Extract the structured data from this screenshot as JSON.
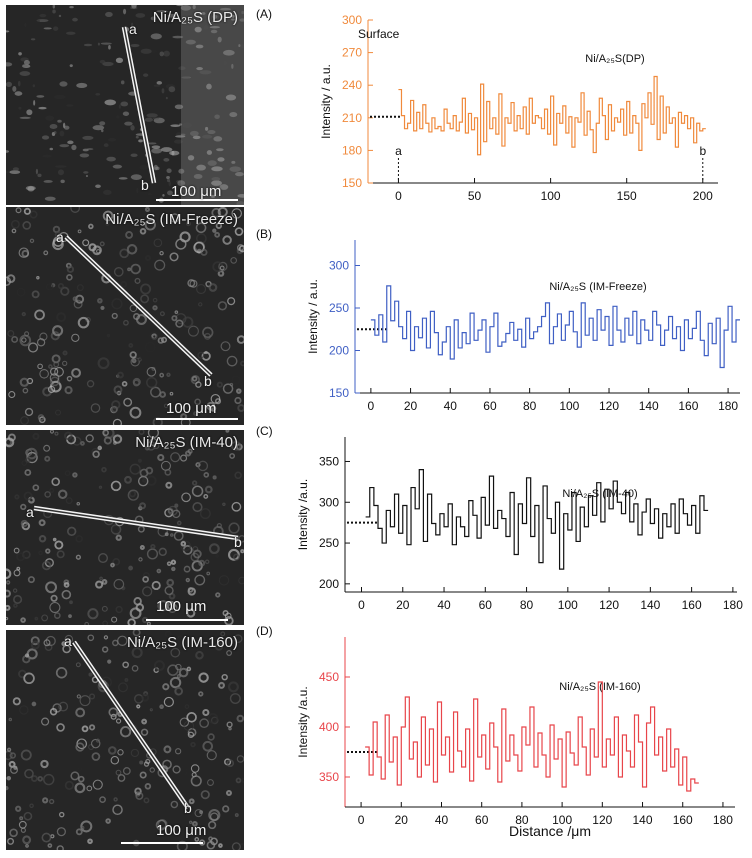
{
  "images": [
    {
      "title": "Ni/A₂₅S (DP)",
      "scale": "100 μm",
      "a": "a",
      "b": "b"
    },
    {
      "title": "Ni/A₂₅S (IM-Freeze)",
      "scale": "100 μm",
      "a": "a",
      "b": "b"
    },
    {
      "title": "Ni/A₂₅S (IM-40)",
      "scale": "100 μm",
      "a": "a",
      "b": "b"
    },
    {
      "title": "Ni/A₂₅S (IM-160)",
      "scale": "100 μm",
      "a": "a",
      "b": "b"
    }
  ],
  "colors": {
    "A": "#f08a3c",
    "B": "#3f5fc4",
    "C": "#111111",
    "D": "#e8454a"
  },
  "chart_data": [
    {
      "type": "line",
      "panel": "(A)",
      "annotation": "Surface",
      "series_label": "Ni/A₂₅S(DP)",
      "ylabel": "Intensity / a.u.",
      "xlim": [
        -20,
        210
      ],
      "ylim": [
        150,
        300
      ],
      "xticks": [
        0,
        50,
        100,
        150,
        200
      ],
      "yticks": [
        150,
        180,
        210,
        240,
        270,
        300
      ],
      "marker_a": "a",
      "marker_b": "b",
      "reference_y": 211,
      "x": [
        0,
        2,
        4,
        6,
        8,
        10,
        12,
        14,
        16,
        18,
        20,
        22,
        24,
        26,
        28,
        30,
        32,
        34,
        36,
        38,
        40,
        42,
        44,
        46,
        48,
        50,
        52,
        54,
        56,
        58,
        60,
        62,
        64,
        66,
        68,
        70,
        72,
        74,
        76,
        78,
        80,
        82,
        84,
        86,
        88,
        90,
        92,
        94,
        96,
        98,
        100,
        102,
        104,
        106,
        108,
        110,
        112,
        114,
        116,
        118,
        120,
        122,
        124,
        126,
        128,
        130,
        132,
        134,
        136,
        138,
        140,
        142,
        144,
        146,
        148,
        150,
        152,
        154,
        156,
        158,
        160,
        162,
        164,
        166,
        168,
        170,
        172,
        174,
        176,
        178,
        180,
        182,
        184,
        186,
        188,
        190,
        192,
        194,
        196,
        198,
        200
      ],
      "values": [
        236,
        212,
        200,
        205,
        226,
        198,
        215,
        200,
        222,
        205,
        197,
        210,
        200,
        202,
        198,
        218,
        205,
        200,
        212,
        198,
        206,
        228,
        196,
        214,
        199,
        210,
        176,
        241,
        188,
        225,
        200,
        210,
        195,
        232,
        184,
        210,
        205,
        224,
        198,
        212,
        200,
        220,
        195,
        228,
        205,
        212,
        210,
        200,
        218,
        195,
        230,
        185,
        214,
        205,
        221,
        196,
        211,
        183,
        210,
        206,
        233,
        194,
        216,
        199,
        178,
        205,
        228,
        212,
        190,
        222,
        198,
        210,
        206,
        218,
        194,
        225,
        196,
        212,
        205,
        180,
        223,
        210,
        233,
        204,
        248,
        190,
        230,
        196,
        220,
        205,
        210,
        183,
        215,
        205,
        212,
        200,
        210,
        187,
        205,
        198,
        200
      ]
    },
    {
      "type": "line",
      "panel": "(B)",
      "series_label": "Ni/A₂₅S (IM-Freeze)",
      "ylabel": "Intensity / a.u.",
      "xlim": [
        -8,
        186
      ],
      "ylim": [
        150,
        330
      ],
      "xticks": [
        0,
        20,
        40,
        60,
        80,
        100,
        120,
        140,
        160,
        180
      ],
      "yticks": [
        150,
        200,
        250,
        300
      ],
      "reference_y": 225,
      "x": [
        0,
        2,
        4,
        6,
        8,
        10,
        12,
        14,
        16,
        18,
        20,
        22,
        24,
        26,
        28,
        30,
        32,
        34,
        36,
        38,
        40,
        42,
        44,
        46,
        48,
        50,
        52,
        54,
        56,
        58,
        60,
        62,
        64,
        66,
        68,
        70,
        72,
        74,
        76,
        78,
        80,
        82,
        84,
        86,
        88,
        90,
        92,
        94,
        96,
        98,
        100,
        102,
        104,
        106,
        108,
        110,
        112,
        114,
        116,
        118,
        120,
        122,
        124,
        126,
        128,
        130,
        132,
        134,
        136,
        138,
        140,
        142,
        144,
        146,
        148,
        150,
        152,
        154,
        156,
        158,
        160,
        162,
        164,
        166,
        168,
        170,
        172,
        174,
        176,
        178,
        180,
        182,
        184
      ],
      "values": [
        236,
        218,
        242,
        210,
        276,
        235,
        258,
        228,
        214,
        246,
        200,
        228,
        215,
        238,
        203,
        246,
        221,
        195,
        210,
        228,
        190,
        236,
        203,
        221,
        208,
        244,
        212,
        224,
        236,
        198,
        228,
        244,
        205,
        210,
        220,
        233,
        212,
        225,
        204,
        238,
        214,
        222,
        228,
        240,
        256,
        208,
        228,
        243,
        212,
        230,
        246,
        222,
        204,
        256,
        218,
        238,
        212,
        248,
        224,
        240,
        206,
        252,
        224,
        210,
        238,
        218,
        246,
        208,
        236,
        224,
        212,
        246,
        230,
        206,
        224,
        240,
        214,
        228,
        200,
        236,
        214,
        226,
        246,
        212,
        194,
        232,
        208,
        238,
        180,
        224,
        252,
        210,
        236
      ]
    },
    {
      "type": "line",
      "panel": "(C)",
      "series_label": "Ni/A₂₅S (IM-40)",
      "ylabel": "Intensity /a.u.",
      "xlim": [
        -8,
        182
      ],
      "ylim": [
        190,
        380
      ],
      "xticks": [
        0,
        20,
        40,
        60,
        80,
        100,
        120,
        140,
        160,
        180
      ],
      "yticks": [
        200,
        250,
        300,
        350
      ],
      "reference_y": 275,
      "x": [
        2,
        4,
        6,
        8,
        10,
        12,
        14,
        16,
        18,
        20,
        22,
        24,
        26,
        28,
        30,
        32,
        34,
        36,
        38,
        40,
        42,
        44,
        46,
        48,
        50,
        52,
        54,
        56,
        58,
        60,
        62,
        64,
        66,
        68,
        70,
        72,
        74,
        76,
        78,
        80,
        82,
        84,
        86,
        88,
        90,
        92,
        94,
        96,
        98,
        100,
        102,
        104,
        106,
        108,
        110,
        112,
        114,
        116,
        118,
        120,
        122,
        124,
        126,
        128,
        130,
        132,
        134,
        136,
        138,
        140,
        142,
        144,
        146,
        148,
        150,
        152,
        154,
        156,
        158,
        160,
        162,
        164,
        166
      ],
      "values": [
        282,
        318,
        296,
        268,
        250,
        290,
        270,
        310,
        262,
        296,
        248,
        318,
        292,
        340,
        252,
        310,
        274,
        260,
        286,
        270,
        298,
        248,
        282,
        270,
        258,
        302,
        284,
        256,
        306,
        272,
        332,
        268,
        290,
        280,
        258,
        312,
        236,
        298,
        274,
        330,
        258,
        296,
        226,
        320,
        280,
        262,
        300,
        218,
        286,
        266,
        312,
        252,
        294,
        270,
        308,
        284,
        324,
        276,
        316,
        292,
        326,
        300,
        286,
        312,
        276,
        298,
        260,
        288,
        304,
        274,
        292,
        256,
        286,
        270,
        298,
        262,
        304,
        286,
        272,
        296,
        262,
        308,
        290
      ]
    },
    {
      "type": "line",
      "panel": "(D)",
      "series_label": "Ni/A₂₅S (IM-160)",
      "ylabel": "Intensity /a.u.",
      "xlim": [
        -8,
        186
      ],
      "ylim": [
        320,
        490
      ],
      "xticks": [
        0,
        20,
        40,
        60,
        80,
        100,
        120,
        140,
        160,
        180
      ],
      "yticks": [
        350,
        400,
        450
      ],
      "reference_y": 375,
      "x": [
        2,
        4,
        6,
        8,
        10,
        12,
        14,
        16,
        18,
        20,
        22,
        24,
        26,
        28,
        30,
        32,
        34,
        36,
        38,
        40,
        42,
        44,
        46,
        48,
        50,
        52,
        54,
        56,
        58,
        60,
        62,
        64,
        66,
        68,
        70,
        72,
        74,
        76,
        78,
        80,
        82,
        84,
        86,
        88,
        90,
        92,
        94,
        96,
        98,
        100,
        102,
        104,
        106,
        108,
        110,
        112,
        114,
        116,
        118,
        120,
        122,
        124,
        126,
        128,
        130,
        132,
        134,
        136,
        138,
        140,
        142,
        144,
        146,
        148,
        150,
        152,
        154,
        156,
        158,
        160,
        162,
        164,
        166
      ],
      "values": [
        380,
        352,
        405,
        370,
        348,
        412,
        365,
        390,
        342,
        400,
        430,
        368,
        385,
        350,
        410,
        362,
        398,
        345,
        425,
        372,
        390,
        355,
        415,
        376,
        360,
        398,
        346,
        428,
        370,
        392,
        358,
        404,
        380,
        345,
        418,
        366,
        392,
        372,
        356,
        400,
        382,
        420,
        360,
        394,
        372,
        350,
        402,
        368,
        388,
        340,
        395,
        374,
        362,
        410,
        380,
        352,
        398,
        370,
        445,
        360,
        388,
        372,
        410,
        350,
        392,
        376,
        360,
        412,
        385,
        340,
        404,
        420,
        372,
        390,
        356,
        398,
        360,
        378,
        342,
        370,
        336,
        348,
        344
      ]
    }
  ],
  "xlabel": "Distance /μm"
}
